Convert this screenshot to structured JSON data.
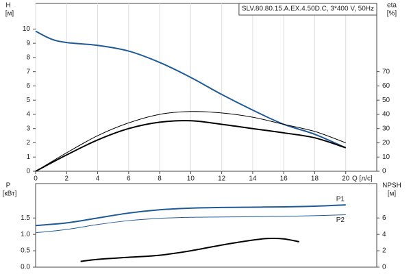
{
  "chart_data": [
    {
      "type": "line",
      "title": "SLV.80.80.15.A.EX.4.50D.C, 3*400 V, 50Hz",
      "ylabel": "H",
      "yunit": "[м]",
      "y2label": "eta",
      "y2unit": "[%]",
      "xlabel": "Q [л/с]",
      "xlim": [
        0,
        22
      ],
      "xticks": [
        0,
        2,
        4,
        6,
        8,
        10,
        12,
        14,
        16,
        18,
        20
      ],
      "ylim": [
        0,
        11.8
      ],
      "yticks": [
        0,
        1,
        2,
        3,
        4,
        5,
        6,
        7,
        8,
        9,
        10
      ],
      "y2lim": [
        0,
        118
      ],
      "y2ticks": [
        0,
        10,
        20,
        30,
        40,
        50,
        60,
        70
      ],
      "grid": true,
      "series": [
        {
          "color": "#1f5a96",
          "line_width": 2,
          "x": [
            0,
            1,
            2,
            4,
            6,
            8,
            10,
            12,
            14,
            16,
            18,
            20
          ],
          "values": [
            9.85,
            9.3,
            9.05,
            8.85,
            8.45,
            7.65,
            6.6,
            5.4,
            4.3,
            3.3,
            2.6,
            1.65
          ]
        },
        {
          "color": "#000000",
          "line_width": 1,
          "axis": "y2",
          "x": [
            0,
            2,
            4,
            6,
            8,
            10,
            12,
            14,
            16,
            18,
            20
          ],
          "values": [
            0,
            13,
            25,
            34,
            40,
            42,
            41,
            38,
            33,
            28,
            20
          ]
        },
        {
          "color": "#000000",
          "line_width": 2,
          "axis": "y2",
          "x": [
            0,
            2,
            4,
            6,
            8,
            10,
            12,
            14,
            16,
            18,
            20
          ],
          "values": [
            0,
            11.5,
            22,
            30,
            34.5,
            35.5,
            33,
            30,
            27,
            23.5,
            16.5
          ]
        }
      ]
    },
    {
      "type": "line",
      "ylabel": "P",
      "yunit": "[кВт]",
      "y2label": "NPSH",
      "y2unit": "[м]",
      "xlim": [
        0,
        22
      ],
      "ylim": [
        0,
        2.55
      ],
      "yticks": [
        {
          "value": 0,
          "label": "0.0"
        },
        0.5,
        {
          "value": 1,
          "label": "1.0"
        },
        1.5
      ],
      "y2lim": [
        0,
        10.2
      ],
      "y2ticks": [
        0,
        2,
        4,
        6
      ],
      "series": [
        {
          "name": "P1",
          "color": "#1f5a96",
          "line_width": 2,
          "x": [
            0,
            2,
            4,
            6,
            8,
            10,
            12,
            14,
            16,
            18,
            20
          ],
          "values": [
            1.27,
            1.35,
            1.5,
            1.65,
            1.75,
            1.8,
            1.82,
            1.83,
            1.84,
            1.86,
            1.9
          ]
        },
        {
          "name": "P2",
          "color": "#1f5a96",
          "line_width": 1,
          "x": [
            0,
            2,
            4,
            6,
            8,
            10,
            12,
            14,
            16,
            18,
            20
          ],
          "values": [
            1.05,
            1.15,
            1.3,
            1.42,
            1.49,
            1.52,
            1.53,
            1.54,
            1.55,
            1.57,
            1.6
          ]
        },
        {
          "color": "#000000",
          "line_width": 2,
          "axis": "y2",
          "x": [
            2.9,
            4,
            6,
            8,
            10,
            12,
            14,
            15,
            16,
            17
          ],
          "values": [
            0.7,
            0.95,
            1.2,
            1.45,
            2.0,
            2.7,
            3.3,
            3.5,
            3.45,
            3.1
          ]
        }
      ]
    }
  ]
}
